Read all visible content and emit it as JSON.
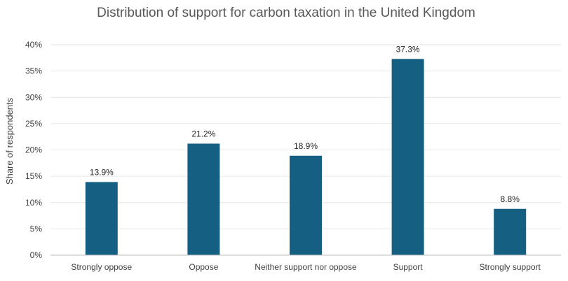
{
  "chart_data": {
    "type": "bar",
    "title": "Distribution of support for carbon taxation in the United Kingdom",
    "xlabel": "",
    "ylabel": "Share of respondents",
    "categories": [
      "Strongly oppose",
      "Oppose",
      "Neither support nor oppose",
      "Support",
      "Strongly support"
    ],
    "values": [
      13.9,
      21.2,
      18.9,
      37.3,
      8.8
    ],
    "data_labels": [
      "13.9%",
      "21.2%",
      "18.9%",
      "37.3%",
      "8.8%"
    ],
    "ylim": [
      0,
      40
    ],
    "yticks": [
      0,
      5,
      10,
      15,
      20,
      25,
      30,
      35,
      40
    ],
    "ytick_labels": [
      "0%",
      "5%",
      "10%",
      "15%",
      "20%",
      "25%",
      "30%",
      "35%",
      "40%"
    ],
    "grid": true,
    "legend": "none",
    "bar_color": "#156082"
  }
}
